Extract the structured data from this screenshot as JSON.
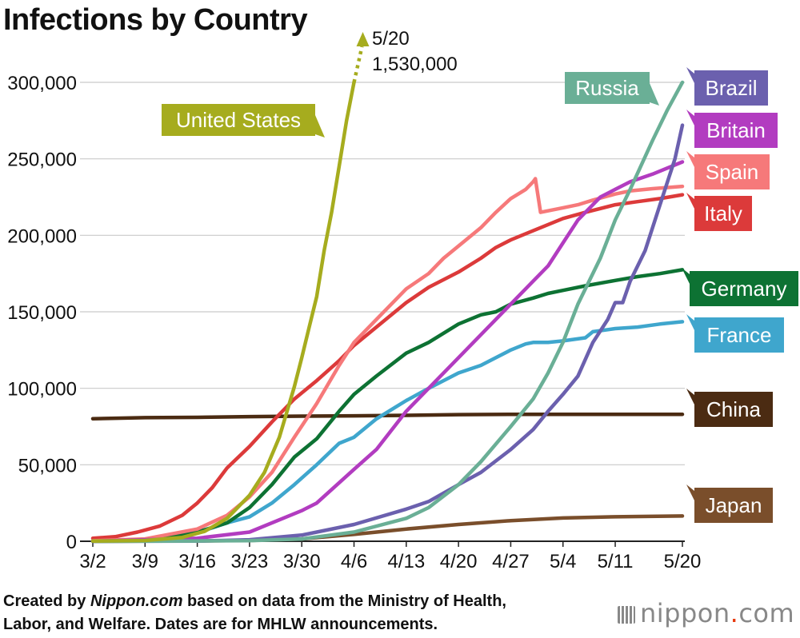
{
  "chart_data": {
    "type": "line",
    "title": "Infections by Country",
    "xlabel": "",
    "ylabel": "",
    "x_ticks": [
      "3/2",
      "3/9",
      "3/16",
      "3/23",
      "3/30",
      "4/6",
      "4/13",
      "4/20",
      "4/27",
      "5/4",
      "5/11",
      "5/20"
    ],
    "x_tick_days": [
      0,
      7,
      14,
      21,
      28,
      35,
      42,
      49,
      56,
      63,
      70,
      79
    ],
    "y_ticks": [
      "0",
      "50,000",
      "100,000",
      "150,000",
      "200,000",
      "250,000",
      "300,000"
    ],
    "ylim": [
      0,
      300000
    ],
    "xlim_days": [
      0,
      79
    ],
    "grid": true,
    "overflow_annotation": {
      "series": "United States",
      "date": "5/20",
      "value": 1530000,
      "date_label": "5/20",
      "value_label": "1,530,000"
    },
    "series": [
      {
        "name": "United States",
        "color": "#a6ac1e",
        "points": [
          [
            0,
            100
          ],
          [
            7,
            500
          ],
          [
            12,
            2500
          ],
          [
            15,
            6500
          ],
          [
            18,
            15000
          ],
          [
            21,
            30000
          ],
          [
            23,
            45000
          ],
          [
            25,
            68000
          ],
          [
            27,
            101000
          ],
          [
            28,
            120000
          ],
          [
            29,
            140000
          ],
          [
            30,
            160000
          ],
          [
            31,
            190000
          ],
          [
            32,
            215000
          ],
          [
            33,
            245000
          ],
          [
            34,
            275000
          ],
          [
            35,
            300000
          ]
        ]
      },
      {
        "name": "Russia",
        "color": "#6aaf96",
        "points": [
          [
            0,
            0
          ],
          [
            14,
            200
          ],
          [
            21,
            400
          ],
          [
            28,
            1500
          ],
          [
            35,
            6000
          ],
          [
            42,
            15000
          ],
          [
            45,
            22000
          ],
          [
            49,
            37000
          ],
          [
            52,
            52000
          ],
          [
            56,
            75000
          ],
          [
            59,
            93000
          ],
          [
            61,
            110000
          ],
          [
            63,
            130000
          ],
          [
            65,
            155000
          ],
          [
            68,
            185000
          ],
          [
            70,
            210000
          ],
          [
            72,
            230000
          ],
          [
            75,
            262000
          ],
          [
            77,
            282000
          ],
          [
            79,
            300000
          ]
        ]
      },
      {
        "name": "Brazil",
        "color": "#6b60ae",
        "points": [
          [
            0,
            0
          ],
          [
            14,
            100
          ],
          [
            21,
            1000
          ],
          [
            28,
            4000
          ],
          [
            35,
            11000
          ],
          [
            42,
            21000
          ],
          [
            45,
            26000
          ],
          [
            49,
            37000
          ],
          [
            52,
            45000
          ],
          [
            56,
            60000
          ],
          [
            59,
            73000
          ],
          [
            61,
            85000
          ],
          [
            63,
            96000
          ],
          [
            65,
            108000
          ],
          [
            67,
            130000
          ],
          [
            69,
            145000
          ],
          [
            70,
            156000
          ],
          [
            71,
            156000
          ],
          [
            72,
            170000
          ],
          [
            74,
            190000
          ],
          [
            76,
            220000
          ],
          [
            78,
            250000
          ],
          [
            79,
            272000
          ]
        ]
      },
      {
        "name": "Britain",
        "color": "#b23cc0",
        "points": [
          [
            0,
            0
          ],
          [
            14,
            2000
          ],
          [
            21,
            6000
          ],
          [
            28,
            20000
          ],
          [
            30,
            25000
          ],
          [
            35,
            47000
          ],
          [
            38,
            60000
          ],
          [
            42,
            85000
          ],
          [
            45,
            100000
          ],
          [
            49,
            120000
          ],
          [
            52,
            135000
          ],
          [
            56,
            155000
          ],
          [
            59,
            170000
          ],
          [
            61,
            180000
          ],
          [
            63,
            195000
          ],
          [
            65,
            210000
          ],
          [
            68,
            225000
          ],
          [
            70,
            230000
          ],
          [
            72,
            235000
          ],
          [
            75,
            240000
          ],
          [
            79,
            248000
          ]
        ]
      },
      {
        "name": "Spain",
        "color": "#f6797a",
        "points": [
          [
            0,
            300
          ],
          [
            7,
            1500
          ],
          [
            14,
            8000
          ],
          [
            18,
            17000
          ],
          [
            21,
            29000
          ],
          [
            24,
            45000
          ],
          [
            27,
            68000
          ],
          [
            30,
            90000
          ],
          [
            33,
            115000
          ],
          [
            35,
            130000
          ],
          [
            38,
            145000
          ],
          [
            42,
            165000
          ],
          [
            45,
            175000
          ],
          [
            47,
            185000
          ],
          [
            49,
            193000
          ],
          [
            52,
            205000
          ],
          [
            54,
            215000
          ],
          [
            56,
            224000
          ],
          [
            58,
            230000
          ],
          [
            59,
            235000
          ],
          [
            59.3,
            237000
          ],
          [
            60,
            215000
          ],
          [
            63,
            218000
          ],
          [
            65,
            220000
          ],
          [
            67,
            223000
          ],
          [
            70,
            227000
          ],
          [
            72,
            229000
          ],
          [
            75,
            230500
          ],
          [
            79,
            232000
          ]
        ]
      },
      {
        "name": "Italy",
        "color": "#dc3a3a",
        "points": [
          [
            0,
            2000
          ],
          [
            3,
            3000
          ],
          [
            6,
            6000
          ],
          [
            9,
            10000
          ],
          [
            12,
            17000
          ],
          [
            14,
            25000
          ],
          [
            16,
            35000
          ],
          [
            18,
            48000
          ],
          [
            21,
            62000
          ],
          [
            24,
            78000
          ],
          [
            27,
            93000
          ],
          [
            30,
            105000
          ],
          [
            33,
            118000
          ],
          [
            35,
            128000
          ],
          [
            38,
            140000
          ],
          [
            42,
            156000
          ],
          [
            45,
            166000
          ],
          [
            49,
            176000
          ],
          [
            52,
            185000
          ],
          [
            54,
            192000
          ],
          [
            56,
            197000
          ],
          [
            59,
            203000
          ],
          [
            61,
            207000
          ],
          [
            63,
            211000
          ],
          [
            66,
            215000
          ],
          [
            70,
            220000
          ],
          [
            73,
            222000
          ],
          [
            76,
            224000
          ],
          [
            79,
            226500
          ]
        ]
      },
      {
        "name": "Germany",
        "color": "#0d7233",
        "points": [
          [
            0,
            150
          ],
          [
            7,
            1000
          ],
          [
            14,
            6000
          ],
          [
            18,
            12000
          ],
          [
            21,
            22000
          ],
          [
            24,
            37000
          ],
          [
            27,
            55000
          ],
          [
            30,
            67000
          ],
          [
            33,
            85000
          ],
          [
            35,
            96000
          ],
          [
            38,
            108000
          ],
          [
            42,
            123000
          ],
          [
            45,
            130000
          ],
          [
            49,
            142000
          ],
          [
            52,
            148000
          ],
          [
            54,
            150000
          ],
          [
            56,
            155000
          ],
          [
            59,
            159000
          ],
          [
            61,
            162000
          ],
          [
            63,
            164000
          ],
          [
            66,
            167000
          ],
          [
            70,
            170500
          ],
          [
            73,
            173000
          ],
          [
            76,
            175000
          ],
          [
            79,
            177500
          ]
        ]
      },
      {
        "name": "France",
        "color": "#3fa6cd",
        "points": [
          [
            0,
            100
          ],
          [
            7,
            1100
          ],
          [
            14,
            5500
          ],
          [
            18,
            12000
          ],
          [
            21,
            16000
          ],
          [
            24,
            25000
          ],
          [
            27,
            37000
          ],
          [
            30,
            50000
          ],
          [
            33,
            64000
          ],
          [
            35,
            68000
          ],
          [
            38,
            80000
          ],
          [
            42,
            92000
          ],
          [
            45,
            100000
          ],
          [
            49,
            110000
          ],
          [
            52,
            115000
          ],
          [
            54,
            120000
          ],
          [
            56,
            125000
          ],
          [
            58,
            129000
          ],
          [
            59,
            130000
          ],
          [
            61,
            130000
          ],
          [
            63,
            131000
          ],
          [
            66,
            133000
          ],
          [
            67,
            137000
          ],
          [
            70,
            139000
          ],
          [
            73,
            140000
          ],
          [
            76,
            142000
          ],
          [
            79,
            143500
          ]
        ]
      },
      {
        "name": "China",
        "color": "#4b2b12",
        "points": [
          [
            0,
            80100
          ],
          [
            7,
            80800
          ],
          [
            14,
            81000
          ],
          [
            21,
            81500
          ],
          [
            28,
            81800
          ],
          [
            35,
            82000
          ],
          [
            42,
            82300
          ],
          [
            49,
            82800
          ],
          [
            56,
            83000
          ],
          [
            63,
            83000
          ],
          [
            70,
            83000
          ],
          [
            79,
            83000
          ]
        ]
      },
      {
        "name": "Japan",
        "color": "#7a4e2b",
        "points": [
          [
            0,
            0
          ],
          [
            7,
            100
          ],
          [
            14,
            200
          ],
          [
            21,
            500
          ],
          [
            28,
            1500
          ],
          [
            35,
            4500
          ],
          [
            42,
            8000
          ],
          [
            49,
            11000
          ],
          [
            56,
            13500
          ],
          [
            63,
            15200
          ],
          [
            70,
            16000
          ],
          [
            79,
            16500
          ]
        ]
      }
    ]
  },
  "labels": {
    "United States": "United States",
    "Russia": "Russia",
    "Brazil": "Brazil",
    "Britain": "Britain",
    "Spain": "Spain",
    "Italy": "Italy",
    "Germany": "Germany",
    "France": "France",
    "China": "China",
    "Japan": "Japan"
  },
  "footer": {
    "part1": "Created by ",
    "italic": "Nippon.com",
    "part2": " based on data from the Ministry of Health,",
    "line2": "Labor, and Welfare. Dates are for MHLW announcements."
  },
  "brand": {
    "name": "nippon",
    "dot": ".",
    "tld": "com"
  }
}
